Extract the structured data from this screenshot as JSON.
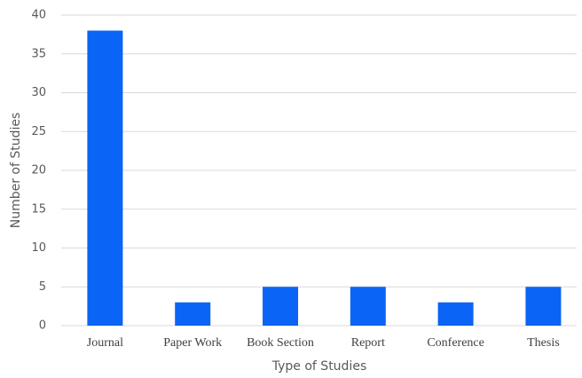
{
  "chart_data": {
    "type": "bar",
    "x_label": "Type of Studies",
    "y_label": "Number of Studies",
    "categories": [
      "Journal",
      "Paper Work",
      "Book Section",
      "Report",
      "Conference",
      "Thesis"
    ],
    "values": [
      38,
      3,
      5,
      5,
      3,
      5
    ],
    "color": "#0a64f5",
    "ylim": [
      0,
      40
    ],
    "yticks": [
      0,
      5,
      10,
      15,
      20,
      25,
      30,
      35,
      40
    ],
    "grid": true
  }
}
